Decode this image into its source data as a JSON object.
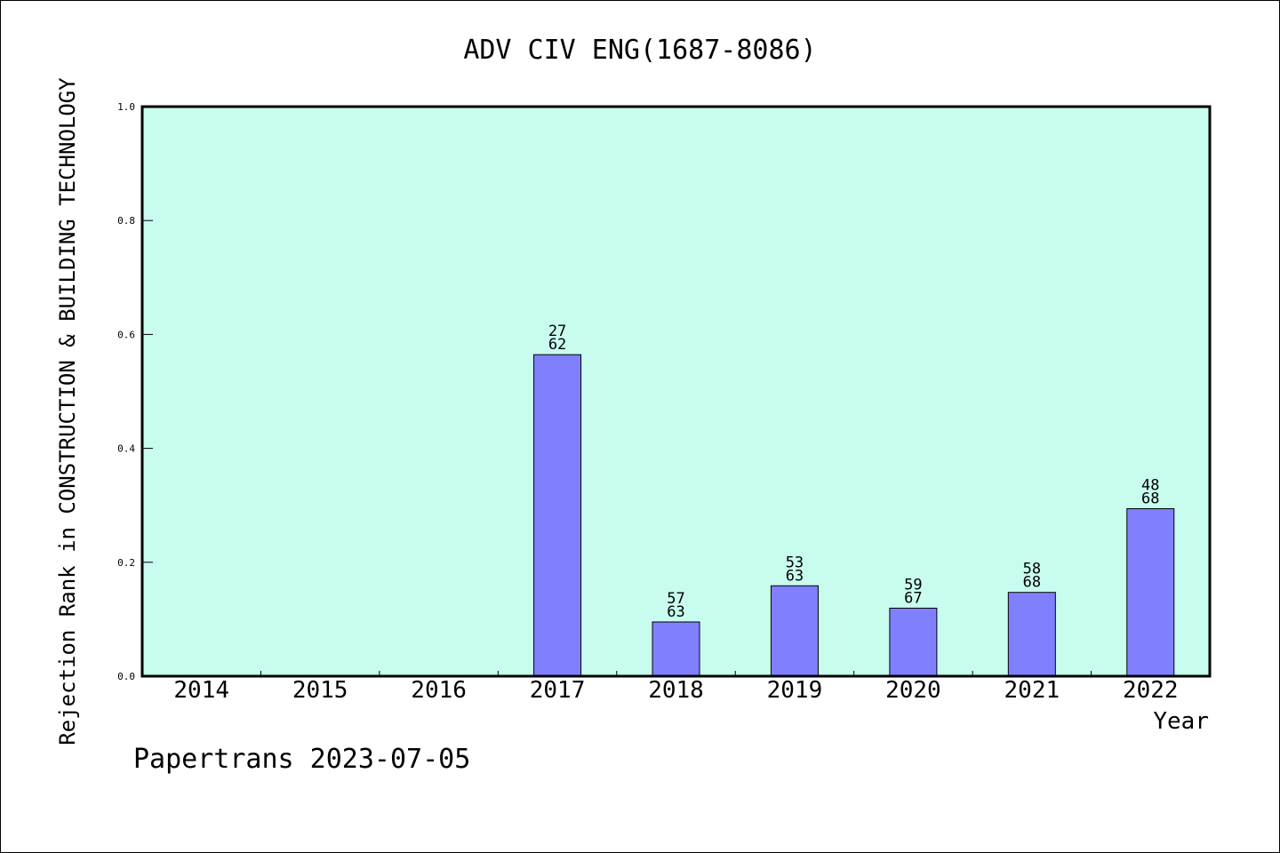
{
  "chart_data": {
    "type": "bar",
    "title": "ADV CIV ENG(1687-8086)",
    "xlabel": "Year",
    "ylabel": "Rejection Rank in CONSTRUCTION & BUILDING TECHNOLOGY",
    "categories": [
      "2014",
      "2015",
      "2016",
      "2017",
      "2018",
      "2019",
      "2020",
      "2021",
      "2022"
    ],
    "values": [
      null,
      null,
      null,
      0.5645,
      0.0952,
      0.1587,
      0.1194,
      0.1471,
      0.2941
    ],
    "bar_labels": [
      null,
      null,
      null,
      [
        "27",
        "62"
      ],
      [
        "57",
        "63"
      ],
      [
        "53",
        "63"
      ],
      [
        "59",
        "67"
      ],
      [
        "58",
        "68"
      ],
      [
        "48",
        "68"
      ]
    ],
    "ylim": [
      0,
      1.0
    ],
    "yticks": [
      "0.0",
      "0.2",
      "0.4",
      "0.6",
      "0.8",
      "1.0"
    ],
    "grid": false,
    "footer": "Papertrans 2023-07-05",
    "colors": {
      "plot_background": "#c8fcee",
      "bar_fill": "#8080ff",
      "bar_stroke": "#000000",
      "axis": "#000000"
    }
  }
}
